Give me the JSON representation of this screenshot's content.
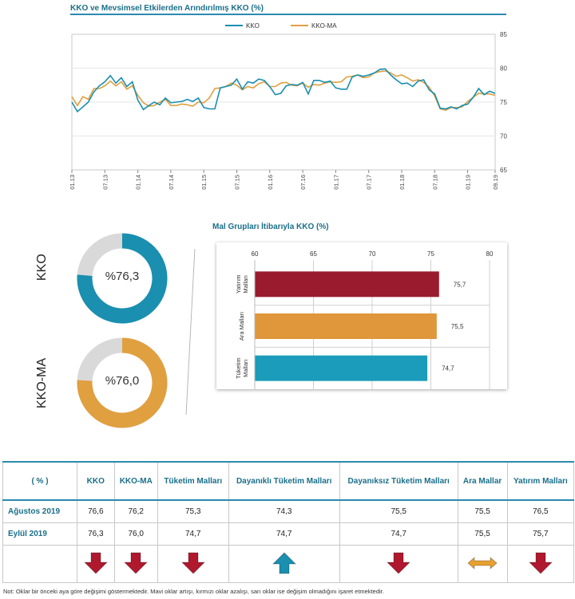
{
  "line_chart": {
    "title": "KKO ve Mevsimsel Etkilerden Arındırılmış KKO (%)",
    "legend": [
      "KKO",
      "KKO-MA"
    ],
    "x_ticks": [
      "01.13",
      "07.13",
      "01.14",
      "07.14",
      "01.15",
      "07.15",
      "01.16",
      "07.16",
      "01.17",
      "07.17",
      "01.18",
      "07.18",
      "01.19",
      "09.19"
    ],
    "y_ticks": [
      "85",
      "80",
      "75",
      "70",
      "65"
    ]
  },
  "donuts": [
    {
      "label": "KKO",
      "value_text": "%76,3"
    },
    {
      "label": "KKO-MA",
      "value_text": "%76,0"
    }
  ],
  "bar_chart": {
    "title": "Mal Grupları İtibarıyla KKO (%)",
    "x_ticks": [
      "60",
      "65",
      "70",
      "75",
      "80"
    ],
    "category_lines": [
      [
        "Yatırım",
        "Malları"
      ],
      [
        "Ara Malları"
      ],
      [
        "Tüketim",
        "Malları"
      ]
    ],
    "value_labels": [
      "75,7",
      "75,5",
      "74,7"
    ]
  },
  "table": {
    "headers": [
      "( % )",
      "KKO",
      "KKO-MA",
      "Tüketim Malları",
      "Dayanıklı Tüketim Malları",
      "Dayanıksız Tüketim Malları",
      "Ara Mallar",
      "Yatırım Malları"
    ],
    "rows": [
      {
        "label": "Ağustos 2019",
        "cells": [
          "76,6",
          "76,2",
          "75,3",
          "74,3",
          "75,5",
          "75,5",
          "76,5"
        ]
      },
      {
        "label": "Eylül 2019",
        "cells": [
          "76,3",
          "76,0",
          "74,7",
          "74,7",
          "74,7",
          "75,5",
          "75,7"
        ]
      }
    ],
    "arrows": [
      "down",
      "down",
      "down",
      "up",
      "down",
      "flat",
      "down"
    ]
  },
  "note": "Not: Oklar bir önceki aya göre değişimi göstermektedir. Mavi oklar artışı, kırmızı oklar azalışı, sarı oklar ise değişim olmadığını işaret etmektedir.",
  "colors": {
    "kko": "#1a8fb0",
    "kko_ma": "#e0a040",
    "bar_yatirim": "#9b1b2e",
    "bar_ara": "#e0963a",
    "bar_tuketim": "#1a9cba",
    "down": "#b0182e",
    "up": "#1a8fb0",
    "flat": "#e8a030",
    "donut_rest": "#d9d9d9"
  },
  "chart_data": [
    {
      "type": "line",
      "title": "KKO ve Mevsimsel Etkilerden Arındırılmış KKO (%)",
      "xlabel": "",
      "ylabel": "",
      "ylim": [
        65,
        85
      ],
      "x_start": "01.13",
      "x_end": "09.19",
      "legend": "top",
      "series": [
        {
          "name": "KKO",
          "values": [
            75.0,
            73.6,
            74.3,
            75.0,
            76.5,
            77.4,
            78.0,
            78.9,
            77.8,
            78.6,
            77.3,
            78.0,
            75.3,
            73.9,
            74.5,
            75.0,
            74.6,
            75.6,
            74.9,
            75.0,
            75.1,
            75.4,
            75.1,
            75.6,
            74.2,
            74.0,
            74.0,
            77.1,
            77.3,
            77.5,
            78.4,
            76.9,
            78.0,
            77.8,
            78.4,
            78.2,
            77.3,
            76.1,
            76.3,
            77.4,
            77.6,
            77.5,
            77.9,
            76.2,
            78.2,
            78.2,
            77.9,
            78.1,
            77.1,
            76.9,
            76.9,
            78.7,
            79.0,
            78.8,
            79.0,
            79.3,
            79.8,
            79.9,
            79.0,
            78.3,
            77.7,
            77.8,
            77.3,
            78.1,
            78.3,
            76.8,
            76.2,
            74.1,
            74.0,
            74.3,
            74.0,
            74.5,
            74.7,
            75.7,
            77.0,
            76.1,
            76.6,
            76.3
          ]
        },
        {
          "name": "KKO-MA",
          "values": [
            75.8,
            74.5,
            75.8,
            75.4,
            77.0,
            77.0,
            77.4,
            78.1,
            77.4,
            78.0,
            76.9,
            77.4,
            76.0,
            74.9,
            74.4,
            74.5,
            75.0,
            75.4,
            74.5,
            74.5,
            74.7,
            74.6,
            74.4,
            75.0,
            74.9,
            75.6,
            77.0,
            77.1,
            77.3,
            77.8,
            77.5,
            76.8,
            77.3,
            77.1,
            77.7,
            78.0,
            77.3,
            77.3,
            77.8,
            77.9,
            77.5,
            77.4,
            77.8,
            77.2,
            77.6,
            77.5,
            77.8,
            78.0,
            77.9,
            78.0,
            78.7,
            78.8,
            79.0,
            78.6,
            78.7,
            79.3,
            79.5,
            79.6,
            79.3,
            78.8,
            79.0,
            78.6,
            78.1,
            78.3,
            77.9,
            77.2,
            75.9,
            74.0,
            73.8,
            74.2,
            74.2,
            74.3,
            75.1,
            75.7,
            76.3,
            76.2,
            76.2,
            76.0
          ]
        }
      ]
    },
    {
      "type": "pie",
      "title": "KKO",
      "categories": [
        "KKO",
        ""
      ],
      "values": [
        76.3,
        23.7
      ]
    },
    {
      "type": "pie",
      "title": "KKO-MA",
      "categories": [
        "KKO-MA",
        ""
      ],
      "values": [
        76.0,
        24.0
      ]
    },
    {
      "type": "bar",
      "orientation": "horizontal",
      "title": "Mal Grupları İtibarıyla KKO (%)",
      "categories": [
        "Yatırım Malları",
        "Ara Malları",
        "Tüketim Malları"
      ],
      "values": [
        75.7,
        75.5,
        74.7
      ],
      "xlim": [
        60,
        80
      ],
      "grid": true
    }
  ]
}
